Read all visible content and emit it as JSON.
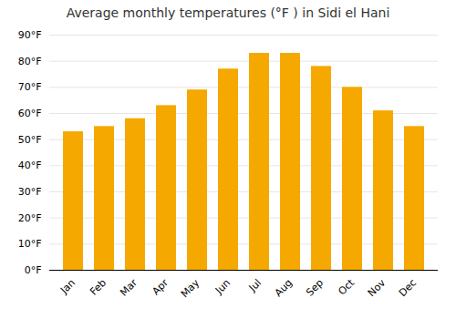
{
  "chart_data": {
    "type": "bar",
    "title": "Average monthly temperatures (°F ) in Sidi el Hani",
    "categories": [
      "Jan",
      "Feb",
      "Mar",
      "Apr",
      "May",
      "Jun",
      "Jul",
      "Aug",
      "Sep",
      "Oct",
      "Nov",
      "Dec"
    ],
    "values": [
      53,
      55,
      58,
      63,
      69,
      77,
      83,
      83,
      78,
      70,
      61,
      55
    ],
    "color": "#F5A800",
    "ylim": [
      0,
      90
    ],
    "yticks": [
      {
        "value": 0,
        "label": "0°F"
      },
      {
        "value": 10,
        "label": "10°F"
      },
      {
        "value": 20,
        "label": "20°F"
      },
      {
        "value": 30,
        "label": "30°F"
      },
      {
        "value": 40,
        "label": "40°F"
      },
      {
        "value": 50,
        "label": "50°F"
      },
      {
        "value": 60,
        "label": "60°F"
      },
      {
        "value": 70,
        "label": "70°F"
      },
      {
        "value": 80,
        "label": "80°F"
      },
      {
        "value": 90,
        "label": "90°F"
      }
    ],
    "grid": true
  }
}
